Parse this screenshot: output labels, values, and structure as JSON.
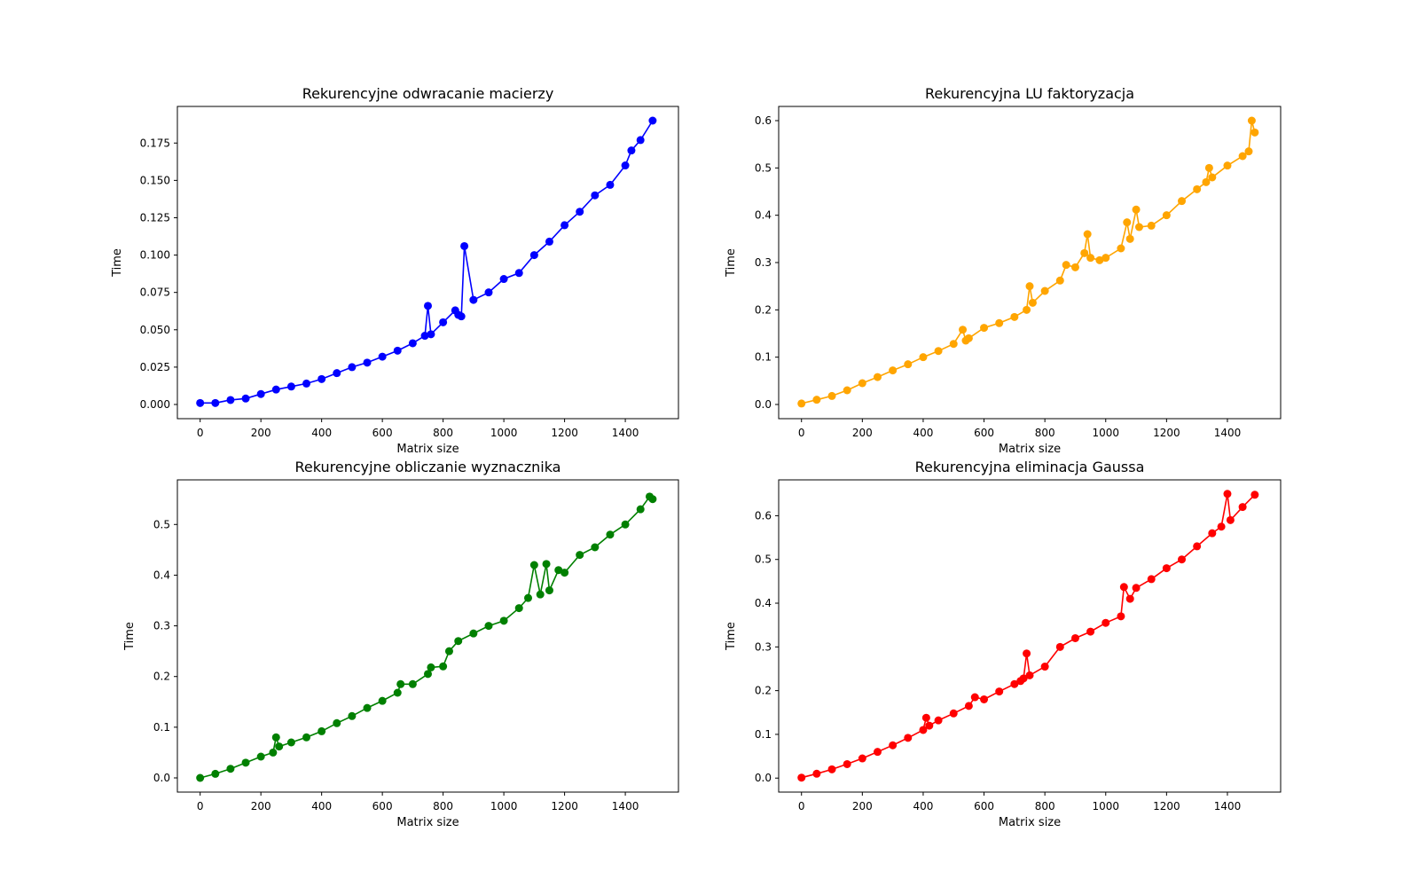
{
  "figure": {
    "background": "#ffffff"
  },
  "chart_data": [
    {
      "type": "line",
      "title": "Rekurencyjne odwracanie macierzy",
      "xlabel": "Matrix size",
      "ylabel": "Time",
      "color": "#0000ff",
      "marker": "circle",
      "grid": false,
      "xlim": [
        -75,
        1575
      ],
      "ylim": [
        -0.0095,
        0.1995
      ],
      "xticks": [
        0,
        200,
        400,
        600,
        800,
        1000,
        1200,
        1400
      ],
      "xtick_labels": [
        "0",
        "200",
        "400",
        "600",
        "800",
        "1000",
        "1200",
        "1400"
      ],
      "yticks": [
        0,
        0.025,
        0.05,
        0.075,
        0.1,
        0.125,
        0.15,
        0.175
      ],
      "ytick_labels": [
        "0.000",
        "0.025",
        "0.050",
        "0.075",
        "0.100",
        "0.125",
        "0.150",
        "0.175"
      ],
      "series": [
        {
          "x": [
            0,
            50,
            100,
            150,
            200,
            250,
            300,
            350,
            400,
            450,
            500,
            550,
            600,
            650,
            700,
            740,
            750,
            760,
            800,
            840,
            850,
            860,
            870,
            900,
            950,
            1000,
            1050,
            1100,
            1150,
            1200,
            1250,
            1300,
            1350,
            1400,
            1420,
            1450,
            1490
          ],
          "y": [
            0.001,
            0.001,
            0.003,
            0.004,
            0.007,
            0.01,
            0.012,
            0.014,
            0.017,
            0.021,
            0.025,
            0.028,
            0.032,
            0.036,
            0.041,
            0.046,
            0.066,
            0.047,
            0.055,
            0.063,
            0.06,
            0.059,
            0.106,
            0.07,
            0.075,
            0.084,
            0.088,
            0.1,
            0.109,
            0.12,
            0.129,
            0.14,
            0.147,
            0.16,
            0.17,
            0.177,
            0.19
          ]
        }
      ]
    },
    {
      "type": "line",
      "title": "Rekurencyjna LU faktoryzacja",
      "xlabel": "Matrix size",
      "ylabel": "Time",
      "color": "#ffa500",
      "marker": "circle",
      "grid": false,
      "xlim": [
        -75,
        1575
      ],
      "ylim": [
        -0.03,
        0.63
      ],
      "xticks": [
        0,
        200,
        400,
        600,
        800,
        1000,
        1200,
        1400
      ],
      "xtick_labels": [
        "0",
        "200",
        "400",
        "600",
        "800",
        "1000",
        "1200",
        "1400"
      ],
      "yticks": [
        0,
        0.1,
        0.2,
        0.3,
        0.4,
        0.5,
        0.6
      ],
      "ytick_labels": [
        "0.0",
        "0.1",
        "0.2",
        "0.3",
        "0.4",
        "0.5",
        "0.6"
      ],
      "series": [
        {
          "x": [
            0,
            50,
            100,
            150,
            200,
            250,
            300,
            350,
            400,
            450,
            500,
            530,
            540,
            550,
            600,
            650,
            700,
            740,
            750,
            760,
            800,
            850,
            870,
            900,
            930,
            940,
            950,
            980,
            1000,
            1050,
            1070,
            1080,
            1100,
            1110,
            1150,
            1200,
            1250,
            1300,
            1330,
            1340,
            1350,
            1400,
            1450,
            1470,
            1480,
            1490
          ],
          "y": [
            0.002,
            0.01,
            0.018,
            0.03,
            0.045,
            0.058,
            0.072,
            0.085,
            0.1,
            0.113,
            0.128,
            0.158,
            0.135,
            0.14,
            0.162,
            0.172,
            0.185,
            0.2,
            0.25,
            0.215,
            0.24,
            0.262,
            0.295,
            0.29,
            0.32,
            0.36,
            0.31,
            0.305,
            0.31,
            0.33,
            0.385,
            0.35,
            0.412,
            0.375,
            0.378,
            0.4,
            0.43,
            0.455,
            0.47,
            0.5,
            0.48,
            0.505,
            0.525,
            0.535,
            0.6,
            0.575
          ]
        }
      ]
    },
    {
      "type": "line",
      "title": "Rekurencyjne obliczanie wyznacznika",
      "xlabel": "Matrix size",
      "ylabel": "Time",
      "color": "#008000",
      "marker": "circle",
      "grid": false,
      "xlim": [
        -75,
        1575
      ],
      "ylim": [
        -0.028,
        0.588
      ],
      "xticks": [
        0,
        200,
        400,
        600,
        800,
        1000,
        1200,
        1400
      ],
      "xtick_labels": [
        "0",
        "200",
        "400",
        "600",
        "800",
        "1000",
        "1200",
        "1400"
      ],
      "yticks": [
        0,
        0.1,
        0.2,
        0.3,
        0.4,
        0.5
      ],
      "ytick_labels": [
        "0.0",
        "0.1",
        "0.2",
        "0.3",
        "0.4",
        "0.5"
      ],
      "series": [
        {
          "x": [
            0,
            50,
            100,
            150,
            200,
            240,
            250,
            260,
            300,
            350,
            400,
            450,
            500,
            550,
            600,
            650,
            660,
            700,
            750,
            760,
            800,
            820,
            850,
            900,
            950,
            1000,
            1050,
            1080,
            1100,
            1120,
            1140,
            1150,
            1180,
            1200,
            1250,
            1300,
            1350,
            1400,
            1450,
            1480,
            1490
          ],
          "y": [
            0.0,
            0.008,
            0.018,
            0.03,
            0.042,
            0.05,
            0.08,
            0.062,
            0.07,
            0.08,
            0.092,
            0.108,
            0.122,
            0.138,
            0.152,
            0.168,
            0.185,
            0.185,
            0.205,
            0.218,
            0.22,
            0.25,
            0.27,
            0.285,
            0.3,
            0.31,
            0.335,
            0.355,
            0.42,
            0.362,
            0.422,
            0.37,
            0.41,
            0.405,
            0.44,
            0.455,
            0.48,
            0.5,
            0.53,
            0.555,
            0.55
          ]
        }
      ]
    },
    {
      "type": "line",
      "title": "Rekurencyjna eliminacja Gaussa",
      "xlabel": "Matrix size",
      "ylabel": "Time",
      "color": "#ff0000",
      "marker": "circle",
      "grid": false,
      "xlim": [
        -75,
        1575
      ],
      "ylim": [
        -0.032,
        0.682
      ],
      "xticks": [
        0,
        200,
        400,
        600,
        800,
        1000,
        1200,
        1400
      ],
      "xtick_labels": [
        "0",
        "200",
        "400",
        "600",
        "800",
        "1000",
        "1200",
        "1400"
      ],
      "yticks": [
        0,
        0.1,
        0.2,
        0.3,
        0.4,
        0.5,
        0.6
      ],
      "ytick_labels": [
        "0.0",
        "0.1",
        "0.2",
        "0.3",
        "0.4",
        "0.5",
        "0.6"
      ],
      "series": [
        {
          "x": [
            0,
            50,
            100,
            150,
            200,
            250,
            300,
            350,
            400,
            410,
            420,
            450,
            500,
            550,
            570,
            600,
            650,
            700,
            720,
            730,
            740,
            750,
            800,
            850,
            900,
            950,
            1000,
            1050,
            1060,
            1080,
            1100,
            1150,
            1200,
            1250,
            1300,
            1350,
            1380,
            1400,
            1410,
            1450,
            1490
          ],
          "y": [
            0.001,
            0.01,
            0.02,
            0.032,
            0.045,
            0.06,
            0.075,
            0.092,
            0.11,
            0.138,
            0.12,
            0.132,
            0.148,
            0.165,
            0.185,
            0.18,
            0.198,
            0.215,
            0.222,
            0.228,
            0.285,
            0.235,
            0.255,
            0.3,
            0.32,
            0.335,
            0.355,
            0.37,
            0.437,
            0.41,
            0.435,
            0.455,
            0.48,
            0.5,
            0.53,
            0.56,
            0.575,
            0.65,
            0.59,
            0.62,
            0.648
          ]
        }
      ]
    }
  ]
}
